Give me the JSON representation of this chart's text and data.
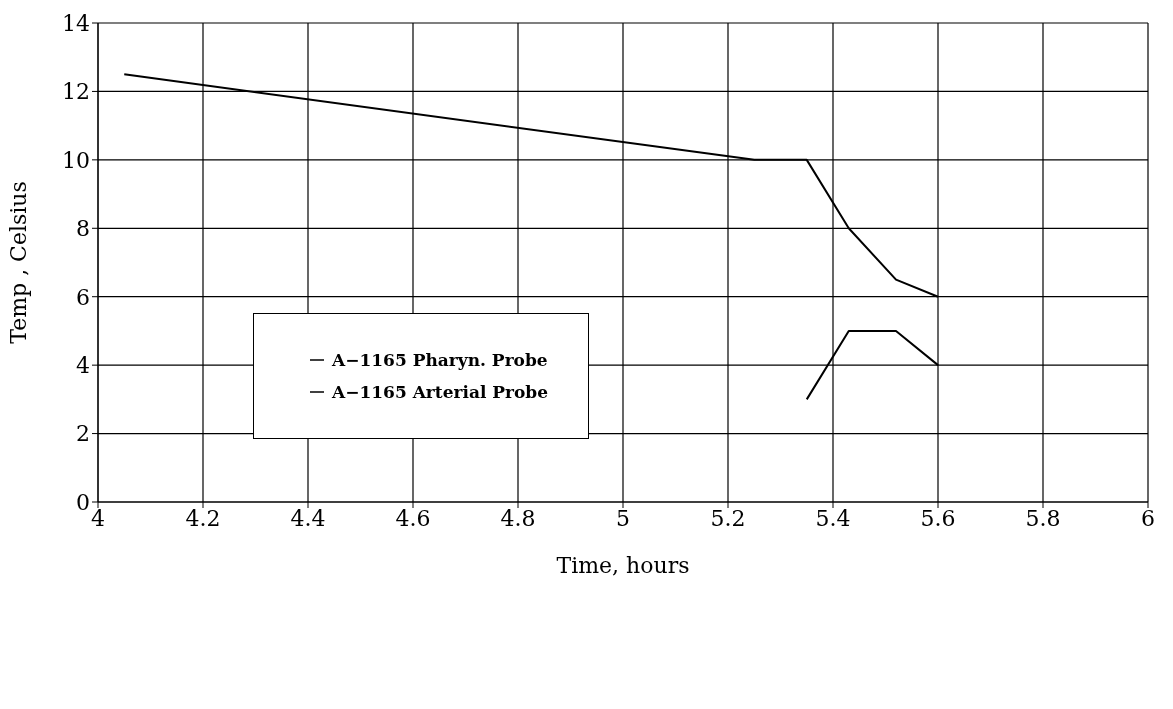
{
  "chart_data": {
    "type": "line",
    "xlabel": "Time, hours",
    "ylabel": "Temp , Celsius",
    "xlim": [
      4,
      6
    ],
    "xticks": [
      4,
      4.2,
      4.4,
      4.6,
      4.8,
      5,
      5.2,
      5.4,
      5.6,
      5.8,
      6
    ],
    "ylim": [
      0,
      14
    ],
    "yticks": [
      0,
      2,
      4,
      6,
      8,
      10,
      12,
      14
    ],
    "grid": true,
    "legend": "left",
    "marker": "none",
    "line_style": "solid",
    "series": [
      {
        "name": "A−1165 Pharyn. Probe",
        "color": "#000000",
        "x": [
          4.05,
          5.25,
          5.35,
          5.43,
          5.52,
          5.6
        ],
        "values": [
          12.5,
          10,
          10,
          8,
          6.5,
          6
        ]
      },
      {
        "name": "A−1165 Arterial Probe",
        "color": "#000000",
        "x": [
          5.35,
          5.43,
          5.52,
          5.6
        ],
        "values": [
          3,
          5,
          5,
          4
        ]
      }
    ]
  }
}
